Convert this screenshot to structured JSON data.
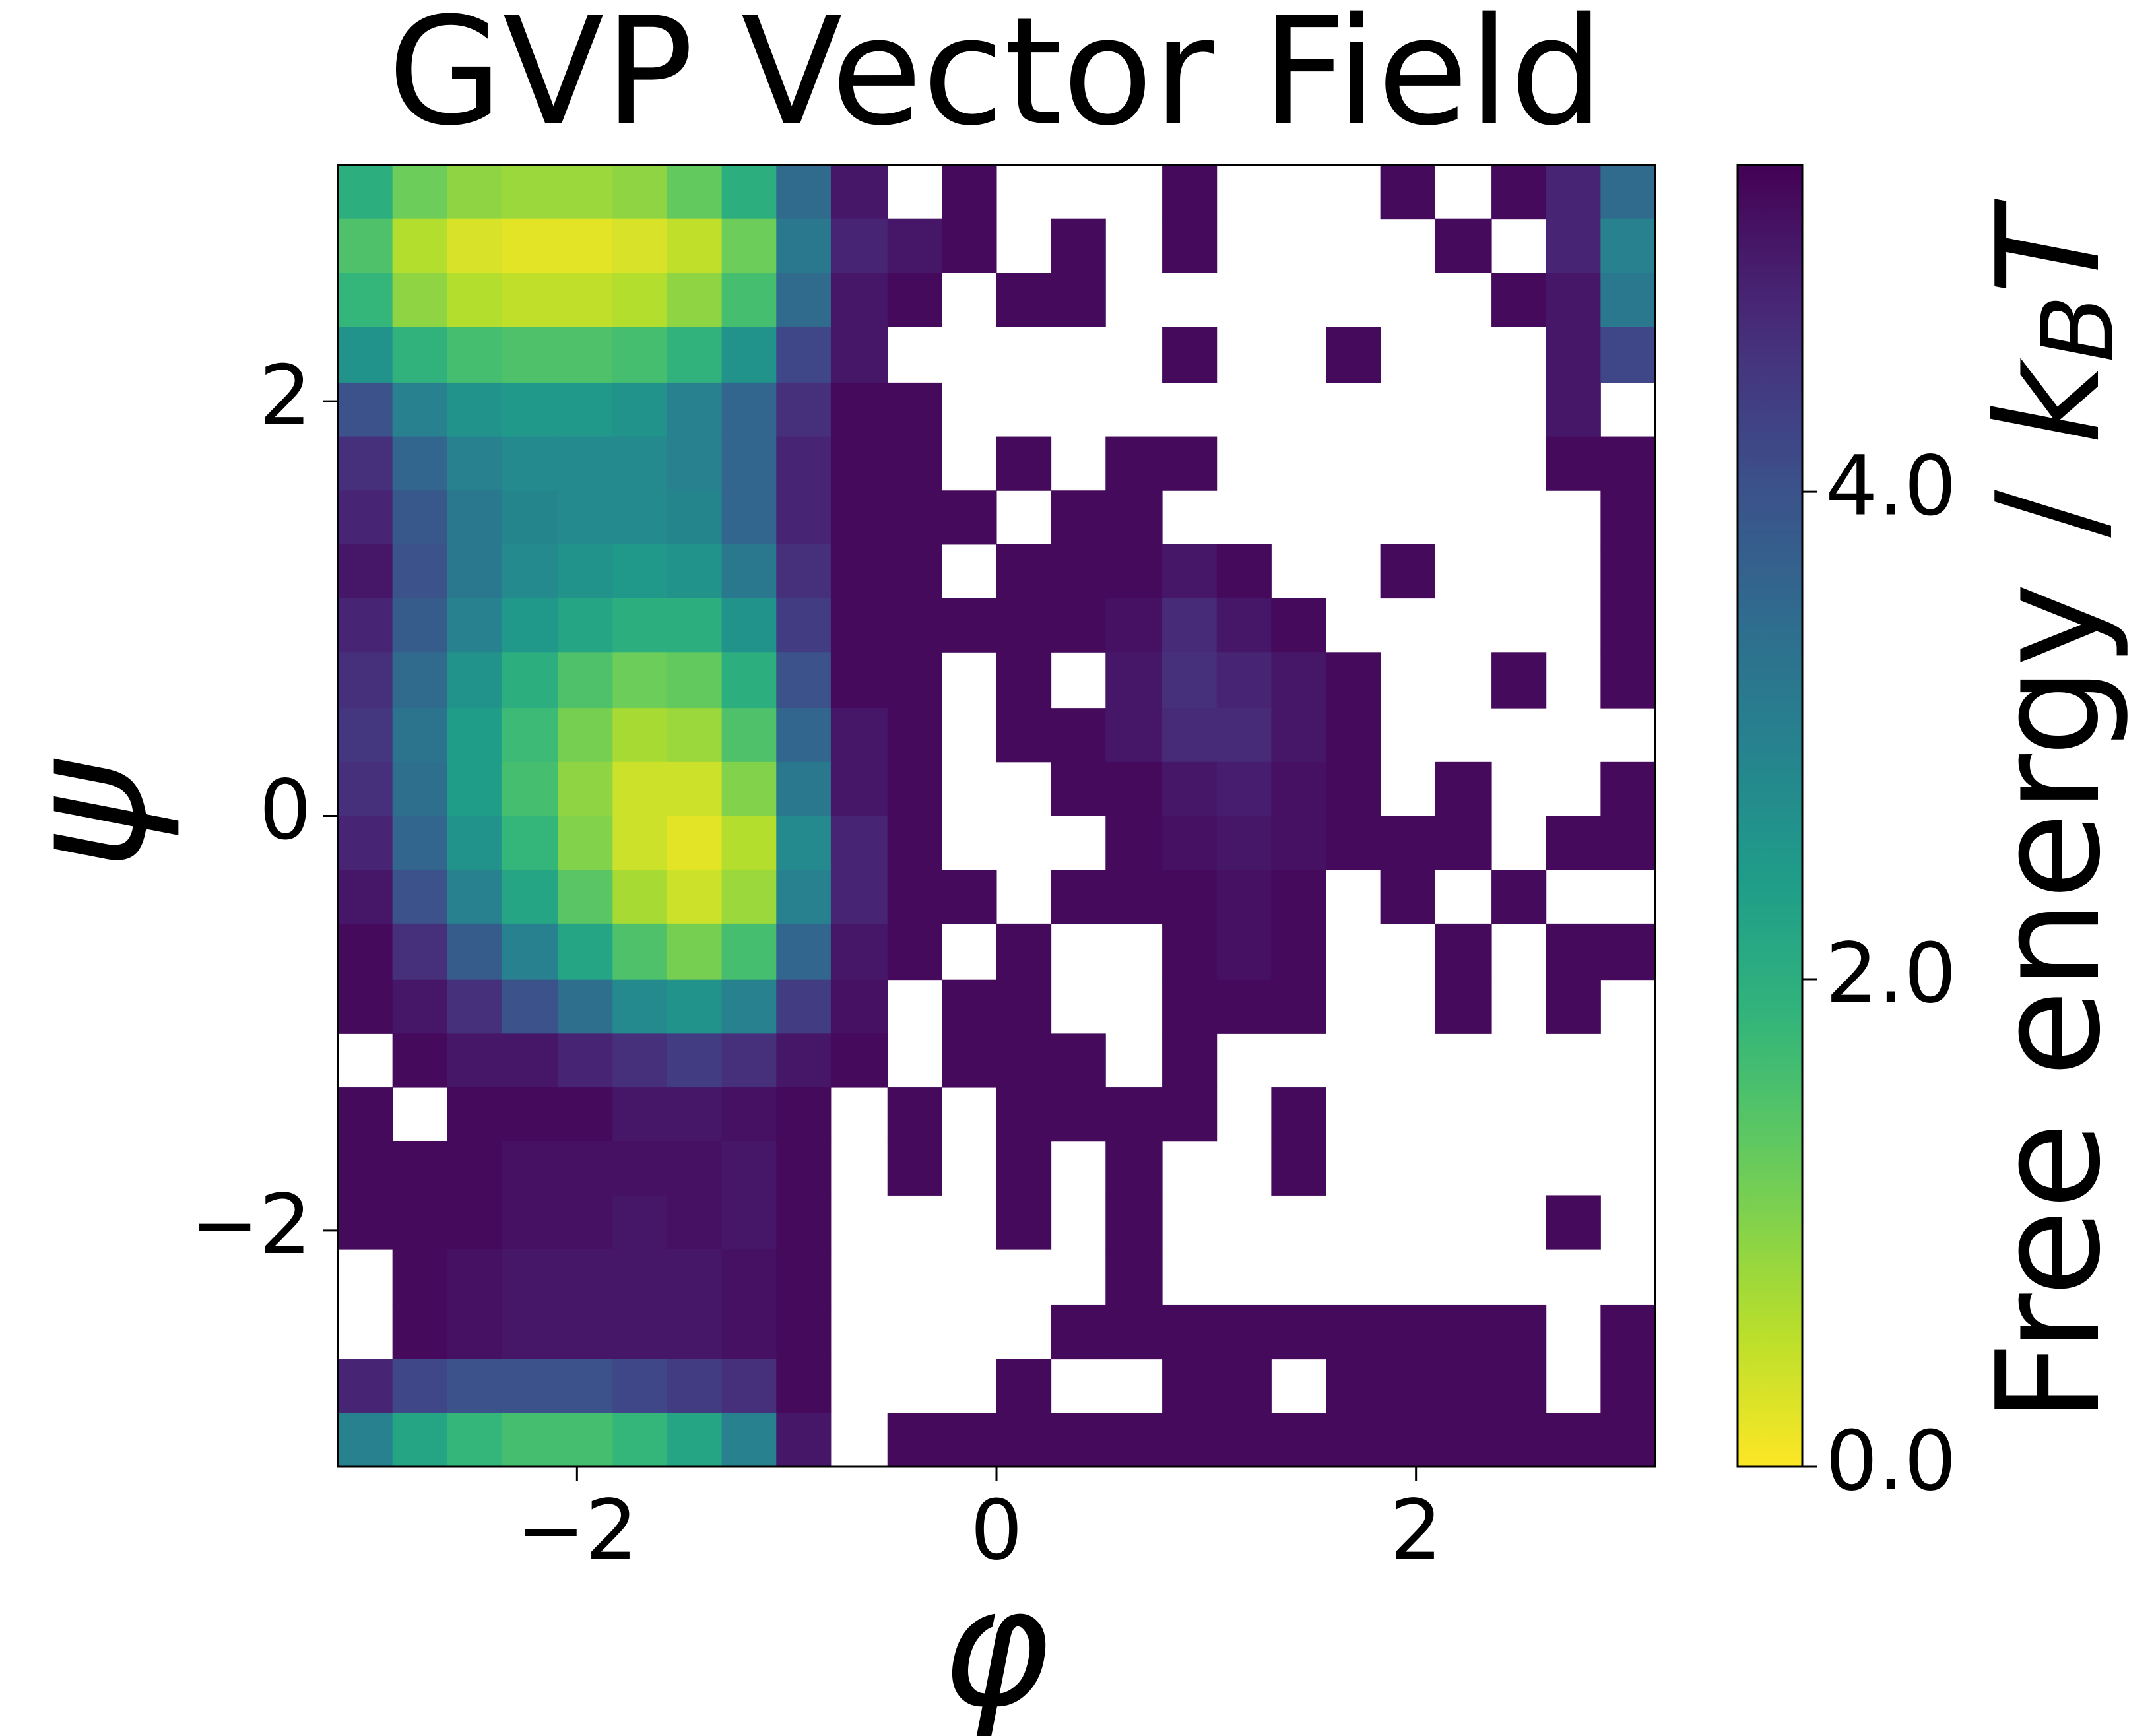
{
  "chart_data": {
    "type": "heatmap",
    "title": "GVP Vector Field",
    "x_label": "φ",
    "y_label": "ψ",
    "colorbar_label": [
      "Free energy / ",
      "k",
      "B",
      "T"
    ],
    "cmap": "viridis_r",
    "xlim": [
      -3.14,
      3.14
    ],
    "ylim": [
      -3.14,
      3.14
    ],
    "xticks": [
      {
        "value": -2,
        "label": "−2"
      },
      0,
      2
    ],
    "yticks": [
      {
        "value": -2,
        "label": "−2"
      },
      0,
      2
    ],
    "zlim": [
      0,
      5.34
    ],
    "zticks": [
      {
        "value": 0,
        "label": "0.0"
      },
      {
        "value": 2,
        "label": "2.0"
      },
      {
        "value": 4,
        "label": "4.0"
      }
    ],
    "xbins": [
      -3.14,
      -2.88,
      -2.62,
      -2.36,
      -2.09,
      -1.83,
      -1.57,
      -1.31,
      -1.05,
      -0.79,
      -0.52,
      -0.26,
      0,
      0.26,
      0.52,
      0.79,
      1.05,
      1.31,
      1.57,
      1.83,
      2.09,
      2.36,
      2.62,
      2.88,
      3.14
    ],
    "ybins": [
      3.14,
      2.88,
      2.62,
      2.36,
      2.09,
      1.83,
      1.57,
      1.31,
      1.05,
      0.79,
      0.52,
      0.26,
      0,
      -0.26,
      -0.52,
      -0.79,
      -1.05,
      -1.31,
      -1.57,
      -1.83,
      -2.09,
      -2.36,
      -2.62,
      -2.88,
      -3.14
    ],
    "z": [
      [
        2.0,
        1.2,
        0.9,
        0.8,
        0.8,
        0.9,
        1.3,
        2.0,
        3.5,
        5.0,
        null,
        5.2,
        null,
        null,
        null,
        5.2,
        null,
        null,
        null,
        5.2,
        null,
        5.2,
        4.8,
        3.5
      ],
      [
        1.5,
        0.6,
        0.3,
        0.2,
        0.2,
        0.3,
        0.5,
        1.2,
        3.2,
        4.8,
        5.0,
        5.2,
        null,
        5.2,
        null,
        5.2,
        null,
        null,
        null,
        null,
        5.2,
        null,
        4.8,
        3.0
      ],
      [
        1.8,
        0.9,
        0.6,
        0.5,
        0.5,
        0.6,
        0.9,
        1.6,
        3.5,
        5.0,
        5.2,
        null,
        5.2,
        5.2,
        null,
        null,
        null,
        null,
        null,
        null,
        null,
        5.2,
        5.0,
        3.2
      ],
      [
        2.6,
        1.9,
        1.6,
        1.5,
        1.5,
        1.6,
        1.9,
        2.6,
        4.2,
        5.0,
        null,
        null,
        null,
        null,
        null,
        5.2,
        null,
        null,
        5.2,
        null,
        null,
        null,
        5.0,
        4.2
      ],
      [
        4.0,
        3.0,
        2.6,
        2.5,
        2.5,
        2.6,
        3.0,
        3.6,
        4.6,
        5.2,
        5.2,
        null,
        null,
        null,
        null,
        null,
        null,
        null,
        null,
        null,
        null,
        null,
        5.0,
        null
      ],
      [
        4.6,
        3.6,
        3.0,
        2.8,
        2.8,
        2.8,
        3.0,
        3.6,
        4.8,
        5.2,
        5.2,
        null,
        5.2,
        null,
        5.2,
        5.2,
        null,
        null,
        null,
        null,
        null,
        null,
        5.2,
        5.2
      ],
      [
        4.8,
        3.9,
        3.2,
        2.9,
        2.8,
        2.8,
        2.9,
        3.6,
        4.8,
        5.2,
        5.2,
        5.2,
        null,
        5.2,
        5.2,
        null,
        null,
        null,
        null,
        null,
        null,
        null,
        null,
        5.2
      ],
      [
        5.0,
        4.0,
        3.2,
        2.8,
        2.6,
        2.5,
        2.6,
        3.2,
        4.6,
        5.2,
        5.2,
        null,
        5.2,
        5.2,
        5.2,
        5.0,
        5.2,
        null,
        null,
        5.2,
        null,
        null,
        null,
        5.2
      ],
      [
        4.8,
        3.8,
        3.0,
        2.5,
        2.2,
        2.0,
        2.0,
        2.6,
        4.4,
        5.2,
        5.2,
        5.2,
        5.2,
        5.2,
        5.1,
        4.7,
        5.0,
        5.2,
        null,
        null,
        null,
        null,
        null,
        5.2
      ],
      [
        4.6,
        3.5,
        2.6,
        2.0,
        1.5,
        1.2,
        1.3,
        2.0,
        4.0,
        5.2,
        5.2,
        null,
        5.2,
        null,
        5.0,
        4.6,
        4.8,
        5.0,
        5.2,
        null,
        null,
        5.2,
        null,
        5.2
      ],
      [
        4.5,
        3.3,
        2.4,
        1.7,
        1.1,
        0.7,
        0.8,
        1.5,
        3.6,
        5.0,
        5.2,
        null,
        5.2,
        5.2,
        5.0,
        4.7,
        4.7,
        5.0,
        5.2,
        null,
        null,
        null,
        null,
        null
      ],
      [
        4.6,
        3.4,
        2.4,
        1.6,
        0.9,
        0.4,
        0.4,
        1.0,
        3.2,
        5.0,
        5.2,
        null,
        null,
        5.2,
        5.2,
        5.0,
        4.9,
        5.1,
        5.2,
        null,
        5.2,
        null,
        null,
        5.2
      ],
      [
        4.8,
        3.6,
        2.6,
        1.8,
        1.0,
        0.4,
        0.2,
        0.6,
        2.8,
        4.8,
        5.2,
        null,
        null,
        null,
        5.2,
        5.1,
        5.0,
        5.1,
        5.2,
        5.2,
        5.2,
        null,
        5.2,
        5.2
      ],
      [
        5.0,
        4.0,
        3.0,
        2.2,
        1.4,
        0.7,
        0.4,
        0.8,
        3.0,
        4.8,
        5.2,
        5.2,
        null,
        5.2,
        5.2,
        5.2,
        5.1,
        5.2,
        null,
        5.2,
        null,
        5.2,
        null,
        null
      ],
      [
        5.2,
        4.6,
        3.8,
        3.0,
        2.2,
        1.5,
        1.1,
        1.6,
        3.6,
        5.0,
        5.2,
        null,
        5.2,
        null,
        null,
        5.2,
        5.1,
        5.2,
        null,
        null,
        5.2,
        null,
        5.2,
        5.2
      ],
      [
        5.2,
        5.0,
        4.6,
        4.0,
        3.4,
        2.8,
        2.6,
        3.0,
        4.4,
        5.1,
        null,
        5.2,
        5.2,
        null,
        null,
        5.2,
        5.2,
        5.2,
        null,
        null,
        5.2,
        null,
        5.2,
        null
      ],
      [
        null,
        5.2,
        5.0,
        5.0,
        4.8,
        4.6,
        4.4,
        4.6,
        5.0,
        5.2,
        null,
        5.2,
        5.2,
        5.2,
        null,
        5.2,
        null,
        null,
        null,
        null,
        null,
        null,
        null,
        null
      ],
      [
        5.2,
        null,
        5.2,
        5.2,
        5.2,
        5.0,
        5.0,
        5.1,
        5.2,
        null,
        5.2,
        null,
        5.2,
        5.2,
        5.2,
        5.2,
        null,
        5.2,
        null,
        null,
        null,
        null,
        null,
        null
      ],
      [
        5.2,
        5.2,
        5.2,
        5.1,
        5.1,
        5.1,
        5.1,
        5.0,
        5.2,
        null,
        5.2,
        null,
        5.2,
        null,
        5.2,
        null,
        null,
        5.2,
        null,
        null,
        null,
        null,
        null,
        null
      ],
      [
        5.2,
        5.2,
        5.2,
        5.1,
        5.1,
        5.0,
        5.1,
        5.0,
        5.2,
        null,
        null,
        null,
        5.2,
        null,
        5.2,
        null,
        null,
        null,
        null,
        null,
        null,
        null,
        5.2,
        null
      ],
      [
        null,
        5.2,
        5.1,
        5.0,
        5.0,
        5.0,
        5.0,
        5.1,
        5.2,
        null,
        null,
        null,
        null,
        null,
        5.2,
        null,
        null,
        null,
        null,
        null,
        null,
        null,
        null,
        null
      ],
      [
        null,
        5.2,
        5.1,
        5.0,
        5.0,
        5.0,
        5.0,
        5.1,
        5.2,
        null,
        null,
        null,
        null,
        5.2,
        5.2,
        5.2,
        5.2,
        5.2,
        5.2,
        5.2,
        5.2,
        5.2,
        null,
        5.2
      ],
      [
        4.8,
        4.2,
        4.0,
        4.0,
        4.0,
        4.2,
        4.4,
        4.6,
        5.2,
        null,
        null,
        null,
        5.2,
        null,
        null,
        5.2,
        5.2,
        null,
        5.2,
        5.2,
        5.2,
        5.2,
        null,
        5.2
      ],
      [
        3.0,
        2.2,
        1.8,
        1.6,
        1.6,
        1.8,
        2.2,
        3.0,
        5.0,
        null,
        5.2,
        5.2,
        5.2,
        5.2,
        5.2,
        5.2,
        5.2,
        5.2,
        5.2,
        5.2,
        5.2,
        5.2,
        5.2,
        5.2
      ]
    ]
  }
}
